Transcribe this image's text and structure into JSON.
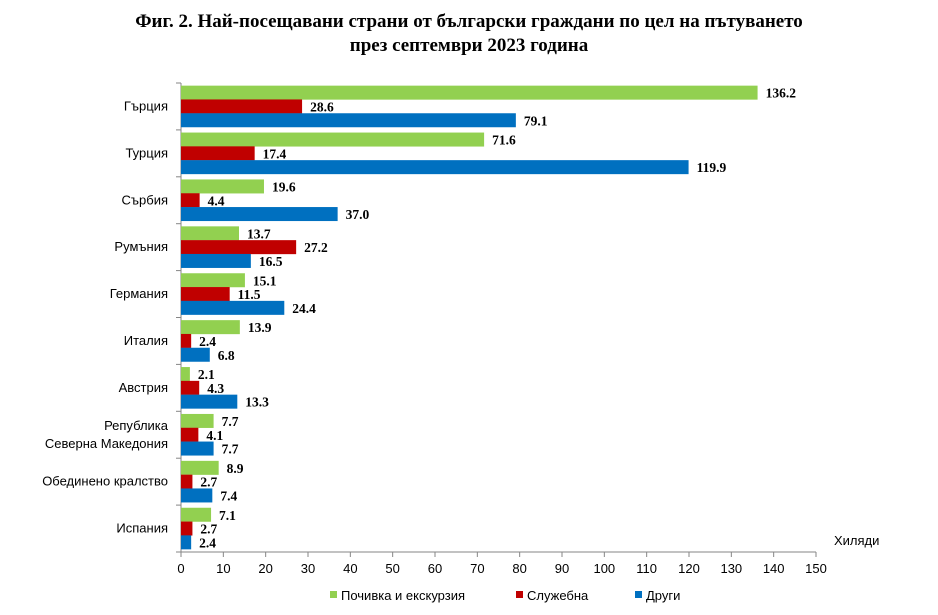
{
  "chart_data": {
    "type": "bar",
    "orientation": "horizontal",
    "title_line1": "Фиг. 2. Най-посещавани страни от български граждани по цел на пътуването",
    "title_line2": "през септември 2023 година",
    "unit_label": "Хиляди",
    "categories": [
      [
        "Гърция"
      ],
      [
        "Турция"
      ],
      [
        "Сърбия"
      ],
      [
        "Румъния"
      ],
      [
        "Германия"
      ],
      [
        "Италия"
      ],
      [
        "Австрия"
      ],
      [
        "Република",
        "Северна Македония"
      ],
      [
        "Обединено кралство"
      ],
      [
        "Испания"
      ]
    ],
    "series": [
      {
        "name": "Почивка и екскурзия",
        "color": "#92d050",
        "values": [
          136.2,
          71.6,
          19.6,
          13.7,
          15.1,
          13.9,
          2.1,
          7.7,
          8.9,
          7.1
        ],
        "labels": [
          "136.2",
          "71.6",
          "19.6",
          "13.7",
          "15.1",
          "13.9",
          "2.1",
          "7.7",
          "8.9",
          "7.1"
        ]
      },
      {
        "name": "Служебна",
        "color": "#c00000",
        "values": [
          28.6,
          17.4,
          4.4,
          27.2,
          11.5,
          2.4,
          4.3,
          4.1,
          2.7,
          2.7
        ],
        "labels": [
          "28.6",
          "17.4",
          "4.4",
          "27.2",
          "11.5",
          "2.4",
          "4.3",
          "4.1",
          "2.7",
          "2.7"
        ]
      },
      {
        "name": "Други",
        "color": "#0070c0",
        "values": [
          79.1,
          119.9,
          37.0,
          16.5,
          24.4,
          6.8,
          13.3,
          7.7,
          7.4,
          2.4
        ],
        "labels": [
          "79.1",
          "119.9",
          "37.0",
          "16.5",
          "24.4",
          "6.8",
          "13.3",
          "7.7",
          "7.4",
          "2.4"
        ]
      }
    ],
    "xlim": [
      0,
      150
    ],
    "xticks": [
      "0",
      "10",
      "20",
      "30",
      "40",
      "50",
      "60",
      "70",
      "80",
      "90",
      "100",
      "110",
      "120",
      "130",
      "140",
      "150"
    ],
    "grid": false,
    "legend_position": "bottom"
  }
}
